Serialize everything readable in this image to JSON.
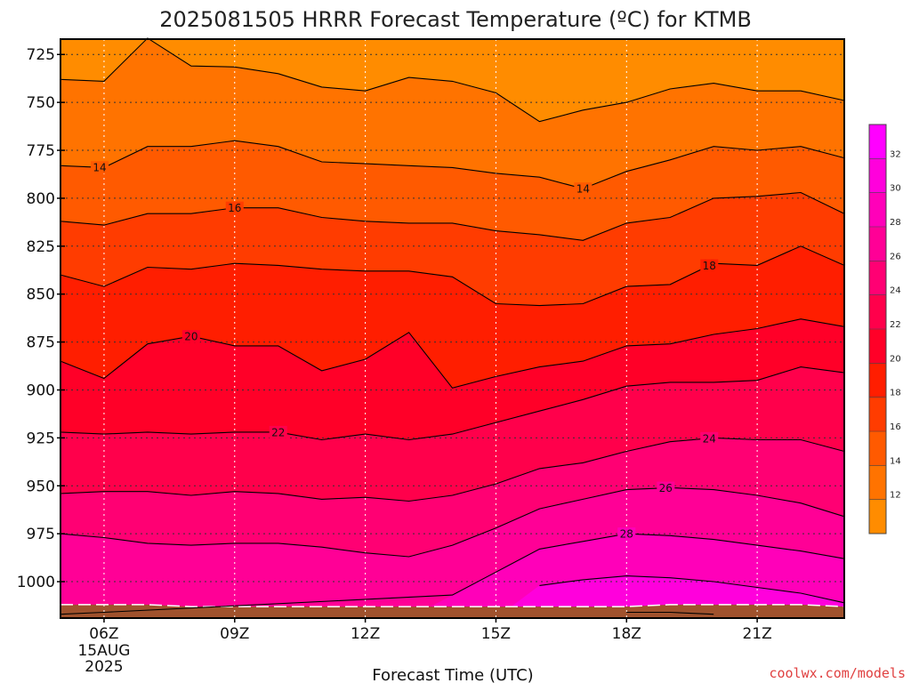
{
  "chart_data": {
    "type": "heatmap",
    "title": "2025081505 HRRR Forecast Temperature (ºC) for KTMB",
    "xlabel": "Forecast Time (UTC)",
    "credit": "coolwx.com/models",
    "date_label": "15AUG",
    "year_label": "2025",
    "x_hours": [
      5,
      6,
      7,
      8,
      9,
      10,
      11,
      12,
      13,
      14,
      15,
      16,
      17,
      18,
      19,
      20,
      21,
      22,
      23
    ],
    "xlim": [
      5,
      23
    ],
    "x_tick_hours": [
      6,
      9,
      12,
      15,
      18,
      21
    ],
    "x_tick_labels": [
      "06Z",
      "09Z",
      "12Z",
      "15Z",
      "18Z",
      "21Z"
    ],
    "ylabel": "",
    "ylim": [
      1019,
      717
    ],
    "y_ticks": [
      725,
      750,
      775,
      800,
      825,
      850,
      875,
      900,
      925,
      950,
      975,
      1000
    ],
    "y_tick_labels": [
      "725",
      "750",
      "775",
      "800",
      "825",
      "850",
      "875",
      "900",
      "925",
      "950",
      "975",
      "1000"
    ],
    "levels": [
      10,
      12,
      14,
      16,
      18,
      20,
      22,
      24,
      26,
      28,
      30,
      32,
      34
    ],
    "colorbar_ticks": [
      12,
      14,
      16,
      18,
      20,
      22,
      24,
      26,
      28,
      30,
      32
    ],
    "colors": [
      "#ff8c00",
      "#ff7300",
      "#ff5a00",
      "#ff3c00",
      "#ff1e00",
      "#ff0028",
      "#ff004b",
      "#ff0073",
      "#ff0096",
      "#ff00b9",
      "#ff00dc",
      "#ff00ff"
    ],
    "ground_color": "#a0522d",
    "contour_color": "#000000",
    "series": [
      {
        "level": 12,
        "p": [
          738,
          739,
          716.5,
          731,
          731.5,
          735,
          742,
          744,
          737,
          739,
          745,
          760,
          754,
          750,
          743,
          740,
          744,
          744,
          749
        ]
      },
      {
        "level": 14,
        "p": [
          783,
          784,
          773,
          773,
          770,
          773,
          781,
          782,
          783,
          784,
          787,
          789,
          795,
          786,
          780,
          773,
          775,
          773,
          779
        ],
        "labels": [
          {
            "x": 5.9,
            "text": "14"
          },
          {
            "x": 17.0,
            "text": "14"
          }
        ]
      },
      {
        "level": 16,
        "p": [
          812,
          814,
          808,
          808,
          805,
          805,
          810,
          812,
          813,
          813,
          817,
          819,
          822,
          813,
          810,
          800,
          799,
          797,
          808
        ],
        "labels": [
          {
            "x": 9.0,
            "text": "16"
          }
        ]
      },
      {
        "level": 18,
        "p": [
          840,
          846,
          836,
          837,
          834,
          835,
          837,
          838,
          838,
          841,
          855,
          856,
          855,
          846,
          845,
          834,
          835,
          825,
          835
        ],
        "labels": [
          {
            "x": 19.9,
            "text": "18"
          }
        ]
      },
      {
        "level": 20,
        "p": [
          885,
          894,
          876,
          872,
          877,
          877,
          890,
          884,
          870,
          899,
          893,
          888,
          885,
          877,
          876,
          871,
          868,
          863,
          867
        ],
        "labels": [
          {
            "x": 8.0,
            "text": "20"
          }
        ]
      },
      {
        "level": 22,
        "p": [
          922,
          923,
          922,
          923,
          922,
          922,
          926,
          923,
          926,
          923,
          917,
          911,
          905,
          898,
          896,
          896,
          895,
          888,
          891
        ],
        "labels": [
          {
            "x": 10.0,
            "text": "22"
          }
        ]
      },
      {
        "level": 24,
        "p": [
          954,
          953,
          953,
          955,
          953,
          954,
          957,
          956,
          958,
          955,
          949,
          941,
          938,
          932,
          927,
          925,
          926,
          926,
          932
        ],
        "labels": [
          {
            "x": 19.9,
            "text": "24"
          }
        ]
      },
      {
        "level": 26,
        "p": [
          975,
          977,
          980,
          981,
          980,
          980,
          982,
          985,
          987,
          981,
          972,
          962,
          957,
          952,
          951,
          952,
          955,
          959,
          966
        ],
        "labels": [
          {
            "x": 18.9,
            "text": "26"
          }
        ]
      },
      {
        "level": 28,
        "p": [
          1017,
          1016,
          1022,
          1022,
          1022,
          1022,
          1022,
          1022,
          1019,
          1007,
          995,
          983,
          979,
          975,
          976,
          978,
          981,
          984,
          988
        ],
        "labels": [
          {
            "x": 18.0,
            "text": "28"
          }
        ]
      },
      {
        "level": 30,
        "p": [
          1022,
          1022,
          1022,
          1022,
          1022,
          1022,
          1022,
          1022,
          1022,
          1022,
          1022,
          1002,
          999,
          997,
          998,
          1000,
          1003,
          1006,
          1011
        ]
      },
      {
        "level": 32,
        "p": [
          1022,
          1022,
          1022,
          1022,
          1022,
          1022,
          1022,
          1022,
          1022,
          1022,
          1022,
          1022,
          1022,
          1016,
          1016,
          1017,
          1022,
          1022,
          1022
        ]
      }
    ],
    "ground_p": [
      1012,
      1012,
      1012,
      1013,
      1013,
      1013,
      1013,
      1013,
      1013,
      1013,
      1013,
      1013,
      1013,
      1013,
      1012,
      1012,
      1012,
      1012,
      1013
    ]
  }
}
